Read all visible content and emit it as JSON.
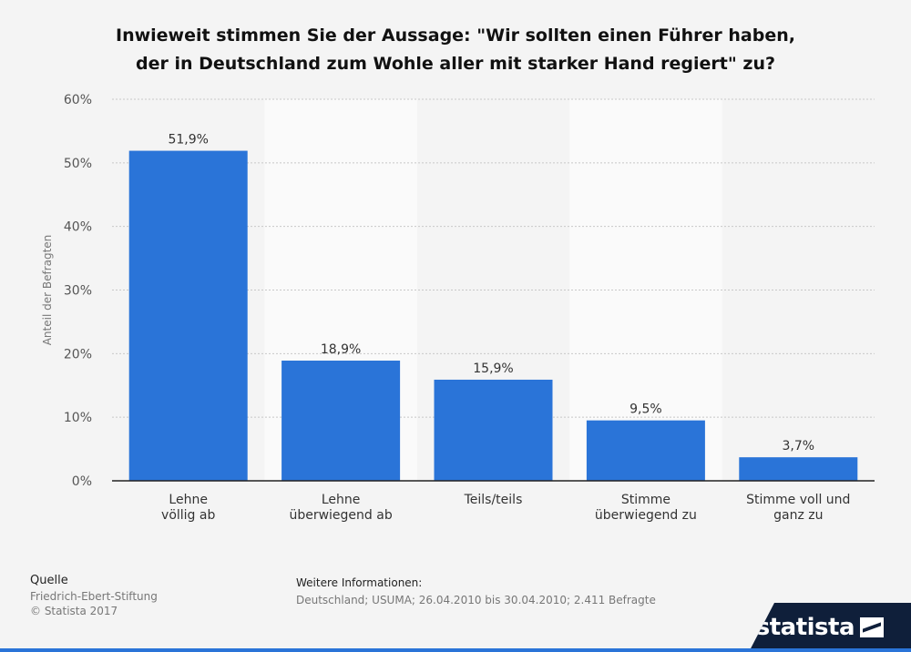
{
  "chart_data": {
    "type": "bar",
    "title_line1": "Inwieweit stimmen Sie der Aussage: \"Wir sollten einen Führer haben,",
    "title_line2": "der in Deutschland zum Wohle aller mit starker Hand regiert\" zu?",
    "ylabel": "Anteil der Befragten",
    "xlabel": "",
    "ylim": [
      0,
      60
    ],
    "yticks": [
      0,
      10,
      20,
      30,
      40,
      50,
      60
    ],
    "ytick_labels": [
      "0%",
      "10%",
      "20%",
      "30%",
      "40%",
      "50%",
      "60%"
    ],
    "categories": [
      [
        "Lehne",
        "völlig ab"
      ],
      [
        "Lehne",
        "überwiegend ab"
      ],
      [
        "Teils/teils"
      ],
      [
        "Stimme",
        "überwiegend zu"
      ],
      [
        "Stimme voll und",
        "ganz zu"
      ]
    ],
    "values": [
      51.9,
      18.9,
      15.9,
      9.5,
      3.7
    ],
    "value_labels": [
      "51,9%",
      "18,9%",
      "15,9%",
      "9,5%",
      "3,7%"
    ],
    "bar_color": "#2a74d8",
    "grid": true
  },
  "footer": {
    "source_label": "Quelle",
    "source_value": "Friedrich-Ebert-Stiftung",
    "copyright": "© Statista 2017",
    "info_label": "Weitere Informationen:",
    "info_value": "Deutschland; USUMA; 26.04.2010 bis 30.04.2010; 2.411 Befragte"
  },
  "brand": {
    "name": "statista"
  }
}
